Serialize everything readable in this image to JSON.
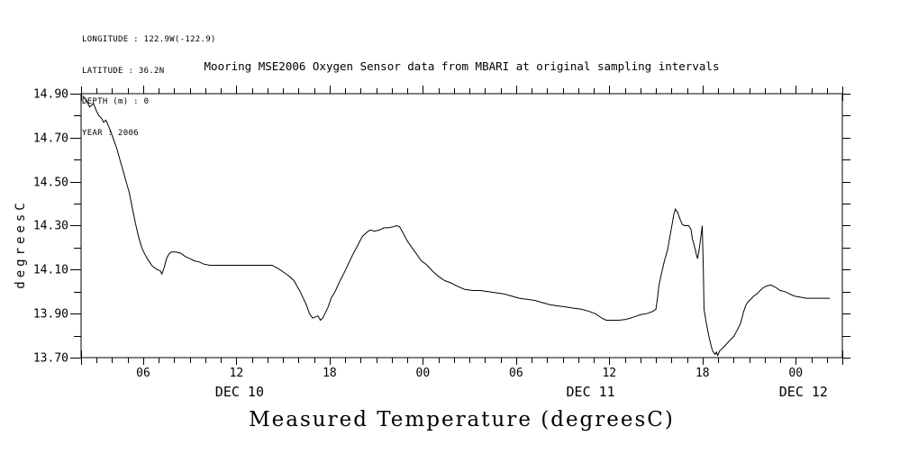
{
  "metadata": {
    "longitude": "LONGITUDE : 122.9W(-122.9)",
    "latitude": "LATITUDE : 36.2N",
    "depth": "DEPTH (m) : 0",
    "year": "YEAR : 2006"
  },
  "chart_data": {
    "type": "line",
    "title": "Mooring MSE2006 Oxygen Sensor data from MBARI at original sampling intervals",
    "xlabel": "Measured Temperature (degreesC)",
    "ylabel": "degreesC",
    "ylim": [
      13.7,
      14.9
    ],
    "y_major_tick_step": 0.2,
    "y_minor_tick_step": 0.1,
    "y_tick_labels": [
      "14.90",
      "14.70",
      "14.50",
      "14.30",
      "14.10",
      "13.90",
      "13.70"
    ],
    "x_axis": {
      "unit": "hours since 2006-12-10 00:00",
      "range_hours": [
        2,
        51
      ],
      "minor_tick_hours": 1,
      "major_ticks": [
        {
          "hour": 6,
          "label": "06"
        },
        {
          "hour": 12,
          "label": "12"
        },
        {
          "hour": 18,
          "label": "18"
        },
        {
          "hour": 24,
          "label": "00"
        },
        {
          "hour": 30,
          "label": "06"
        },
        {
          "hour": 36,
          "label": "12"
        },
        {
          "hour": 42,
          "label": "18"
        },
        {
          "hour": 48,
          "label": "00"
        }
      ],
      "date_labels": [
        {
          "hour": 12.2,
          "label": "DEC 10"
        },
        {
          "hour": 34.8,
          "label": "DEC 11"
        },
        {
          "hour": 48.5,
          "label": "DEC 12"
        }
      ]
    },
    "grid": false,
    "legend": false,
    "line_color": "#000000",
    "background_color": "#ffffff",
    "series": [
      {
        "name": "Measured Temperature (degreesC)",
        "points": [
          [
            2.1,
            14.89
          ],
          [
            2.3,
            14.875
          ],
          [
            2.55,
            14.84
          ],
          [
            2.8,
            14.855
          ],
          [
            3.0,
            14.82
          ],
          [
            3.15,
            14.8
          ],
          [
            3.3,
            14.79
          ],
          [
            3.45,
            14.77
          ],
          [
            3.6,
            14.78
          ],
          [
            3.75,
            14.755
          ],
          [
            3.9,
            14.73
          ],
          [
            4.1,
            14.69
          ],
          [
            4.3,
            14.65
          ],
          [
            4.5,
            14.6
          ],
          [
            4.7,
            14.55
          ],
          [
            4.9,
            14.5
          ],
          [
            5.1,
            14.45
          ],
          [
            5.3,
            14.38
          ],
          [
            5.5,
            14.31
          ],
          [
            5.7,
            14.25
          ],
          [
            5.9,
            14.2
          ],
          [
            6.1,
            14.17
          ],
          [
            6.3,
            14.145
          ],
          [
            6.6,
            14.115
          ],
          [
            6.9,
            14.1
          ],
          [
            7.1,
            14.095
          ],
          [
            7.2,
            14.08
          ],
          [
            7.35,
            14.11
          ],
          [
            7.5,
            14.15
          ],
          [
            7.65,
            14.17
          ],
          [
            7.8,
            14.18
          ],
          [
            8.1,
            14.18
          ],
          [
            8.4,
            14.175
          ],
          [
            8.7,
            14.16
          ],
          [
            9.0,
            14.15
          ],
          [
            9.3,
            14.14
          ],
          [
            9.6,
            14.135
          ],
          [
            9.9,
            14.125
          ],
          [
            10.3,
            14.12
          ],
          [
            10.8,
            14.12
          ],
          [
            11.4,
            14.12
          ],
          [
            12.0,
            14.12
          ],
          [
            12.6,
            14.12
          ],
          [
            13.2,
            14.12
          ],
          [
            13.8,
            14.12
          ],
          [
            14.3,
            14.12
          ],
          [
            14.8,
            14.1
          ],
          [
            15.1,
            14.085
          ],
          [
            15.4,
            14.07
          ],
          [
            15.7,
            14.05
          ],
          [
            15.9,
            14.025
          ],
          [
            16.1,
            14.0
          ],
          [
            16.3,
            13.97
          ],
          [
            16.5,
            13.94
          ],
          [
            16.7,
            13.9
          ],
          [
            16.9,
            13.88
          ],
          [
            17.1,
            13.885
          ],
          [
            17.25,
            13.89
          ],
          [
            17.4,
            13.87
          ],
          [
            17.55,
            13.88
          ],
          [
            17.7,
            13.9
          ],
          [
            17.9,
            13.93
          ],
          [
            18.1,
            13.97
          ],
          [
            18.35,
            14.0
          ],
          [
            18.6,
            14.04
          ],
          [
            18.9,
            14.08
          ],
          [
            19.2,
            14.125
          ],
          [
            19.5,
            14.17
          ],
          [
            19.8,
            14.21
          ],
          [
            20.1,
            14.25
          ],
          [
            20.4,
            14.27
          ],
          [
            20.6,
            14.28
          ],
          [
            20.9,
            14.275
          ],
          [
            21.2,
            14.28
          ],
          [
            21.5,
            14.29
          ],
          [
            21.8,
            14.29
          ],
          [
            22.1,
            14.295
          ],
          [
            22.3,
            14.3
          ],
          [
            22.5,
            14.295
          ],
          [
            22.7,
            14.27
          ],
          [
            23.0,
            14.23
          ],
          [
            23.3,
            14.2
          ],
          [
            23.6,
            14.17
          ],
          [
            23.9,
            14.14
          ],
          [
            24.2,
            14.125
          ],
          [
            24.4,
            14.11
          ],
          [
            24.6,
            14.095
          ],
          [
            25.0,
            14.07
          ],
          [
            25.4,
            14.05
          ],
          [
            25.8,
            14.04
          ],
          [
            26.2,
            14.025
          ],
          [
            26.7,
            14.01
          ],
          [
            27.2,
            14.005
          ],
          [
            27.7,
            14.005
          ],
          [
            28.2,
            14.0
          ],
          [
            28.7,
            13.995
          ],
          [
            29.2,
            13.99
          ],
          [
            29.7,
            13.98
          ],
          [
            30.2,
            13.97
          ],
          [
            30.7,
            13.965
          ],
          [
            31.2,
            13.96
          ],
          [
            31.7,
            13.95
          ],
          [
            32.2,
            13.94
          ],
          [
            32.7,
            13.935
          ],
          [
            33.2,
            13.93
          ],
          [
            33.7,
            13.925
          ],
          [
            34.2,
            13.92
          ],
          [
            34.7,
            13.91
          ],
          [
            35.1,
            13.9
          ],
          [
            35.5,
            13.88
          ],
          [
            35.8,
            13.87
          ],
          [
            36.2,
            13.87
          ],
          [
            36.6,
            13.87
          ],
          [
            37.0,
            13.873
          ],
          [
            37.3,
            13.878
          ],
          [
            37.6,
            13.885
          ],
          [
            38.0,
            13.895
          ],
          [
            38.4,
            13.9
          ],
          [
            38.8,
            13.91
          ],
          [
            39.0,
            13.92
          ],
          [
            39.1,
            13.97
          ],
          [
            39.2,
            14.03
          ],
          [
            39.35,
            14.08
          ],
          [
            39.55,
            14.14
          ],
          [
            39.75,
            14.19
          ],
          [
            39.9,
            14.25
          ],
          [
            40.05,
            14.31
          ],
          [
            40.15,
            14.35
          ],
          [
            40.25,
            14.375
          ],
          [
            40.4,
            14.36
          ],
          [
            40.55,
            14.33
          ],
          [
            40.7,
            14.305
          ],
          [
            40.85,
            14.3
          ],
          [
            41.1,
            14.3
          ],
          [
            41.25,
            14.285
          ],
          [
            41.35,
            14.24
          ],
          [
            41.5,
            14.2
          ],
          [
            41.6,
            14.17
          ],
          [
            41.68,
            14.15
          ],
          [
            41.78,
            14.19
          ],
          [
            41.88,
            14.24
          ],
          [
            41.98,
            14.3
          ],
          [
            42.05,
            14.1
          ],
          [
            42.1,
            13.92
          ],
          [
            42.25,
            13.855
          ],
          [
            42.4,
            13.8
          ],
          [
            42.55,
            13.755
          ],
          [
            42.65,
            13.73
          ],
          [
            42.8,
            13.715
          ],
          [
            42.9,
            13.725
          ],
          [
            42.97,
            13.71
          ],
          [
            43.1,
            13.73
          ],
          [
            43.25,
            13.74
          ],
          [
            43.45,
            13.755
          ],
          [
            43.65,
            13.77
          ],
          [
            43.85,
            13.785
          ],
          [
            44.0,
            13.795
          ],
          [
            44.2,
            13.82
          ],
          [
            44.45,
            13.855
          ],
          [
            44.65,
            13.91
          ],
          [
            44.8,
            13.94
          ],
          [
            44.95,
            13.955
          ],
          [
            45.1,
            13.965
          ],
          [
            45.3,
            13.98
          ],
          [
            45.5,
            13.99
          ],
          [
            45.65,
            14.0
          ],
          [
            45.85,
            14.015
          ],
          [
            46.1,
            14.025
          ],
          [
            46.4,
            14.03
          ],
          [
            46.7,
            14.02
          ],
          [
            47.0,
            14.005
          ],
          [
            47.3,
            14.0
          ],
          [
            47.6,
            13.99
          ],
          [
            47.9,
            13.98
          ],
          [
            48.3,
            13.975
          ],
          [
            48.7,
            13.97
          ],
          [
            49.2,
            13.97
          ],
          [
            49.7,
            13.97
          ],
          [
            50.2,
            13.97
          ]
        ]
      }
    ]
  }
}
